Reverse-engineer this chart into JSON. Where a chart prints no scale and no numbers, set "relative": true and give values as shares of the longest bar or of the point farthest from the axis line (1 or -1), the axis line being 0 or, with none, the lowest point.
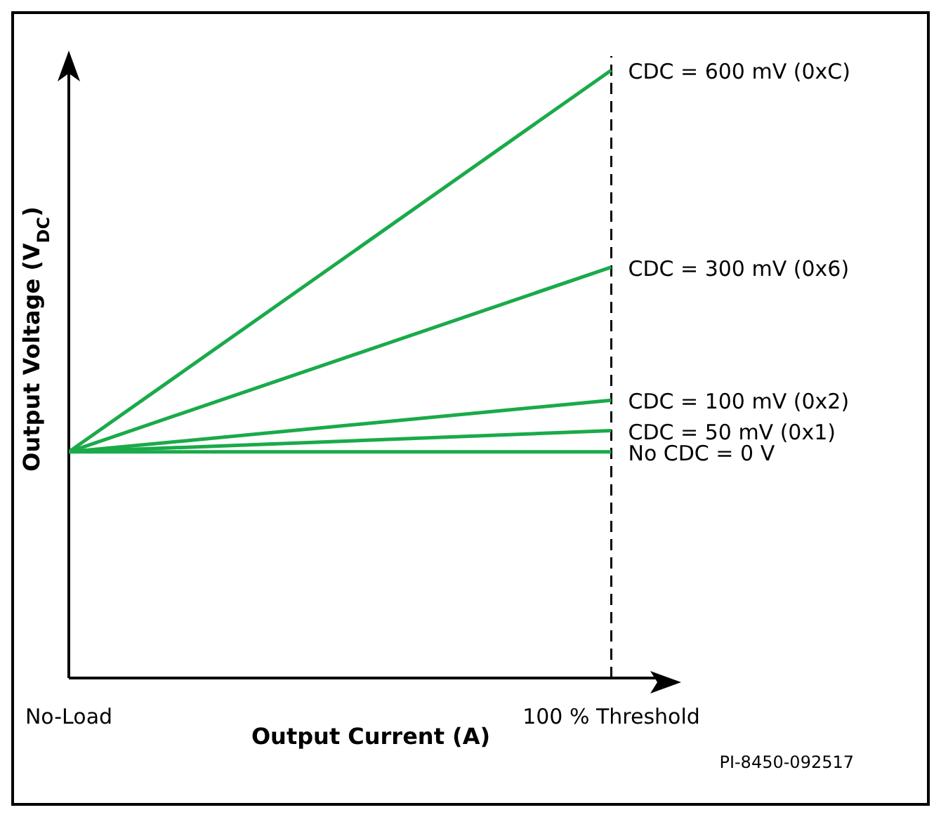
{
  "chart_data": {
    "type": "line",
    "relative": true,
    "xlabel": "Output Current (A)",
    "ylabel": "Output Voltage (V$_{DC}$)",
    "categories": [
      "No-Load",
      "100 % Threshold"
    ],
    "series": [
      {
        "name": "CDC = 600 mV (0xC)",
        "color": "#1aaa4a",
        "values": [
          0.372,
          1
        ]
      },
      {
        "name": "CDC = 300 mV (0x6)",
        "color": "#1aaa4a",
        "values": [
          0.372,
          0.676
        ]
      },
      {
        "name": "CDC = 100 mV (0x2)",
        "color": "#1aaa4a",
        "values": [
          0.372,
          0.457
        ]
      },
      {
        "name": "CDC = 50 mV (0x1)",
        "color": "#1aaa4a",
        "values": [
          0.372,
          0.407
        ]
      },
      {
        "name": "No CDC = 0 V",
        "color": "#1aaa4a",
        "values": [
          0.372,
          0.372
        ]
      }
    ],
    "ref_lines": [
      {
        "axis": "x",
        "value": "100 % Threshold",
        "line_style": "dashed",
        "color": "#000000"
      }
    ],
    "annotations": [
      "PI-8450-092517"
    ]
  }
}
